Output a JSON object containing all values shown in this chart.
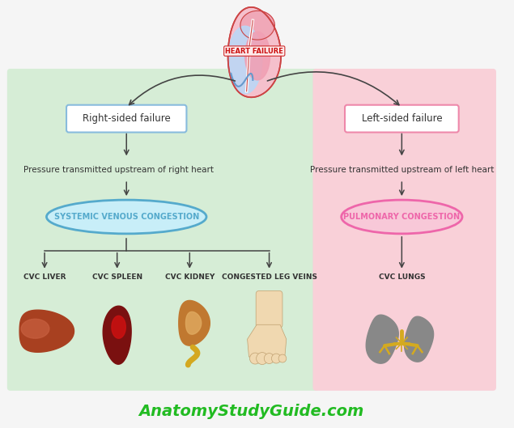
{
  "bg_color": "#f5f5f5",
  "left_bg": "#d6edd6",
  "right_bg": "#f9d0d8",
  "title_website": "AnatomyStudyGuide.com",
  "title_website_color": "#22bb22",
  "heart_failure_label": "HEART FAILURE",
  "right_box_label": "Right-sided failure",
  "left_box_label": "Left-sided failure",
  "right_pressure_text": "Pressure transmitted upstream of right heart",
  "left_pressure_text": "Pressure transmitted upstream of left heart",
  "systemic_label": "SYSTEMIC VENOUS CONGESTION",
  "pulmonary_label": "PULMONARY CONGESTION",
  "organ_labels": [
    "CVC LIVER",
    "CVC SPLEEN",
    "CVC KIDNEY",
    "CONGESTED LEG VEINS",
    "CVC LUNGS"
  ],
  "right_box_color": "#88bbdd",
  "left_box_color": "#ee88aa",
  "systemic_ellipse_color": "#55aacc",
  "systemic_ellipse_fill": "#c8eef8",
  "pulmonary_ellipse_color": "#ee66aa",
  "pulmonary_ellipse_fill": "#f8c8d8",
  "arrow_color": "#444444",
  "heart_fail_text_color": "#cc1111",
  "organ_label_color": "#333333",
  "liver_color": "#a84020",
  "liver_highlight": "#c86040",
  "spleen_dark": "#7a1010",
  "spleen_bright": "#cc1111",
  "kidney_color": "#c07830",
  "kidney_inner": "#e0aa60",
  "kidney_ureter": "#d4a820",
  "foot_color": "#f0d8b0",
  "foot_edge": "#c0a070",
  "lung_color": "#888888",
  "lung_bronchi": "#d4aa20"
}
